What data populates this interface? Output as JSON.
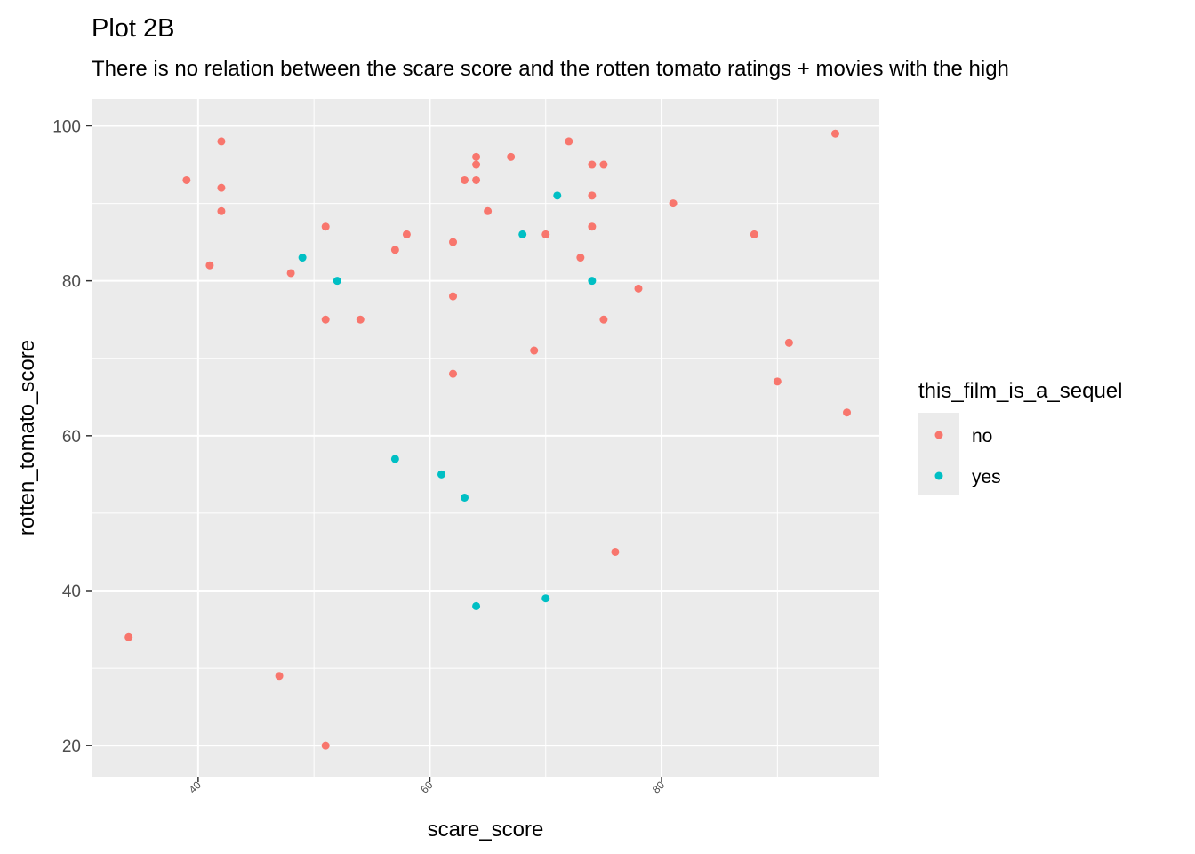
{
  "chart_data": {
    "type": "scatter",
    "title": "Plot 2B",
    "subtitle": "There is no relation between the scare score and the rotten tomato ratings + movies with the high",
    "xlabel": "scare_score",
    "ylabel": "rotten_tomato_score",
    "xlim": [
      30.8,
      98.8
    ],
    "ylim": [
      16,
      103.5
    ],
    "x_ticks": [
      40,
      60,
      80
    ],
    "y_ticks": [
      20,
      40,
      60,
      80,
      100
    ],
    "grid": true,
    "legend": {
      "title": "this_film_is_a_sequel",
      "placement": "right",
      "entries": [
        {
          "label": "no",
          "color": "#F8766D"
        },
        {
          "label": "yes",
          "color": "#00BFC4"
        }
      ]
    },
    "colors": {
      "panel": "#EBEBEB",
      "grid_major": "#FFFFFF",
      "no": "#F8766D",
      "yes": "#00BFC4"
    },
    "series": [
      {
        "name": "no",
        "color": "#F8766D",
        "points": [
          {
            "x": 34,
            "y": 34
          },
          {
            "x": 39,
            "y": 93
          },
          {
            "x": 41,
            "y": 82
          },
          {
            "x": 42,
            "y": 98
          },
          {
            "x": 42,
            "y": 92
          },
          {
            "x": 42,
            "y": 89
          },
          {
            "x": 47,
            "y": 29
          },
          {
            "x": 48,
            "y": 81
          },
          {
            "x": 51,
            "y": 87
          },
          {
            "x": 51,
            "y": 75
          },
          {
            "x": 51,
            "y": 20
          },
          {
            "x": 54,
            "y": 75
          },
          {
            "x": 57,
            "y": 84
          },
          {
            "x": 58,
            "y": 86
          },
          {
            "x": 62,
            "y": 85
          },
          {
            "x": 62,
            "y": 78
          },
          {
            "x": 62,
            "y": 68
          },
          {
            "x": 63,
            "y": 93
          },
          {
            "x": 64,
            "y": 96
          },
          {
            "x": 64,
            "y": 95
          },
          {
            "x": 64,
            "y": 93
          },
          {
            "x": 65,
            "y": 89
          },
          {
            "x": 67,
            "y": 96
          },
          {
            "x": 69,
            "y": 71
          },
          {
            "x": 70,
            "y": 86
          },
          {
            "x": 72,
            "y": 98
          },
          {
            "x": 73,
            "y": 83
          },
          {
            "x": 74,
            "y": 95
          },
          {
            "x": 74,
            "y": 91
          },
          {
            "x": 74,
            "y": 87
          },
          {
            "x": 75,
            "y": 95
          },
          {
            "x": 75,
            "y": 75
          },
          {
            "x": 76,
            "y": 45
          },
          {
            "x": 78,
            "y": 79
          },
          {
            "x": 81,
            "y": 90
          },
          {
            "x": 88,
            "y": 86
          },
          {
            "x": 90,
            "y": 67
          },
          {
            "x": 91,
            "y": 72
          },
          {
            "x": 95,
            "y": 99
          },
          {
            "x": 96,
            "y": 63
          }
        ]
      },
      {
        "name": "yes",
        "color": "#00BFC4",
        "points": [
          {
            "x": 49,
            "y": 83
          },
          {
            "x": 52,
            "y": 80
          },
          {
            "x": 57,
            "y": 57
          },
          {
            "x": 61,
            "y": 55
          },
          {
            "x": 63,
            "y": 52
          },
          {
            "x": 64,
            "y": 38
          },
          {
            "x": 68,
            "y": 86
          },
          {
            "x": 70,
            "y": 39
          },
          {
            "x": 71,
            "y": 91
          },
          {
            "x": 74,
            "y": 80
          }
        ]
      }
    ]
  }
}
